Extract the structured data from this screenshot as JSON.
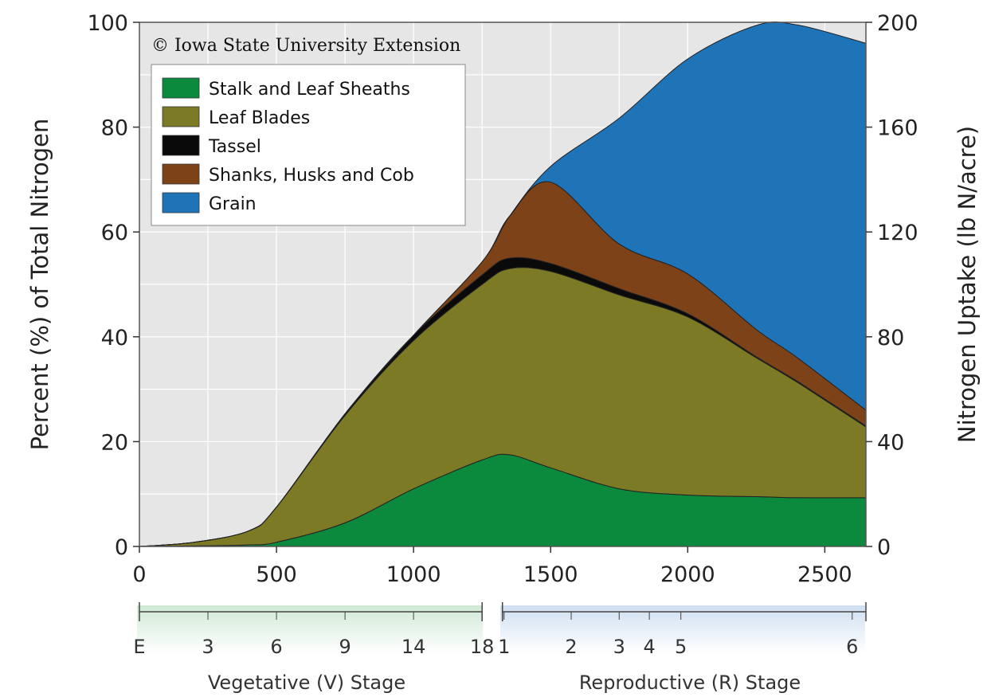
{
  "chart_data": {
    "type": "area",
    "stacked": true,
    "x": [
      0,
      200,
      400,
      500,
      750,
      1000,
      1250,
      1350,
      1500,
      1750,
      2000,
      2250,
      2400,
      2650
    ],
    "xlim": [
      0,
      2650
    ],
    "xticks": [
      0,
      500,
      1000,
      1500,
      2000,
      2500
    ],
    "ylim": [
      0,
      100
    ],
    "yticks": [
      0,
      20,
      40,
      60,
      80,
      100
    ],
    "ylabel": "Percent (%) of Total Nitrogen",
    "y2lim": [
      0,
      200
    ],
    "y2ticks": [
      0,
      40,
      80,
      120,
      160,
      200
    ],
    "y2label": "Nitrogen Uptake (lb N/acre)",
    "grid": true,
    "legend_position": "top-left",
    "copyright": "© Iowa State University Extension",
    "series": [
      {
        "name": "Stalk and Leaf Sheaths",
        "color": "#0b8a3e",
        "values": [
          0,
          0.1,
          0.3,
          0.8,
          4.5,
          11,
          16.5,
          17.5,
          15,
          11,
          9.8,
          9.5,
          9.3,
          9.3
        ]
      },
      {
        "name": "Leaf Blades",
        "color": "#7d7a26",
        "values": [
          0,
          0.7,
          2.7,
          6.7,
          20.5,
          28.3,
          33.5,
          35.5,
          37.5,
          37,
          34,
          26.5,
          22,
          13.5
        ]
      },
      {
        "name": "Tassel",
        "color": "#0a0a0a",
        "values": [
          0,
          0,
          0,
          0,
          0.3,
          1,
          1.8,
          2,
          1.5,
          1.2,
          0.6,
          0.2,
          0.2,
          0.2
        ]
      },
      {
        "name": "Shanks, Husks and Cob",
        "color": "#7e4218",
        "values": [
          0,
          0,
          0,
          0,
          0,
          0,
          2.5,
          8,
          15.5,
          8.5,
          7.6,
          5.2,
          4.5,
          3
        ]
      },
      {
        "name": "Grain",
        "color": "#1f74b8",
        "values": [
          0,
          0,
          0,
          0,
          0,
          0,
          0,
          0,
          3,
          24,
          41,
          58,
          63.5,
          70
        ]
      }
    ],
    "stage_axis": {
      "vegetative": {
        "title": "Vegetative (V) Stage",
        "ticks": [
          {
            "label": "E",
            "gdd": 0
          },
          {
            "label": "3",
            "gdd": 250
          },
          {
            "label": "6",
            "gdd": 500
          },
          {
            "label": "9",
            "gdd": 750
          },
          {
            "label": "14",
            "gdd": 1000
          },
          {
            "label": "18",
            "gdd": 1250
          }
        ]
      },
      "reproductive": {
        "title": "Reproductive (R) Stage",
        "ticks": [
          {
            "label": "1",
            "gdd": 1330
          },
          {
            "label": "2",
            "gdd": 1575
          },
          {
            "label": "3",
            "gdd": 1750
          },
          {
            "label": "4",
            "gdd": 1860
          },
          {
            "label": "5",
            "gdd": 1975
          },
          {
            "label": "6",
            "gdd": 2600
          }
        ]
      }
    }
  }
}
